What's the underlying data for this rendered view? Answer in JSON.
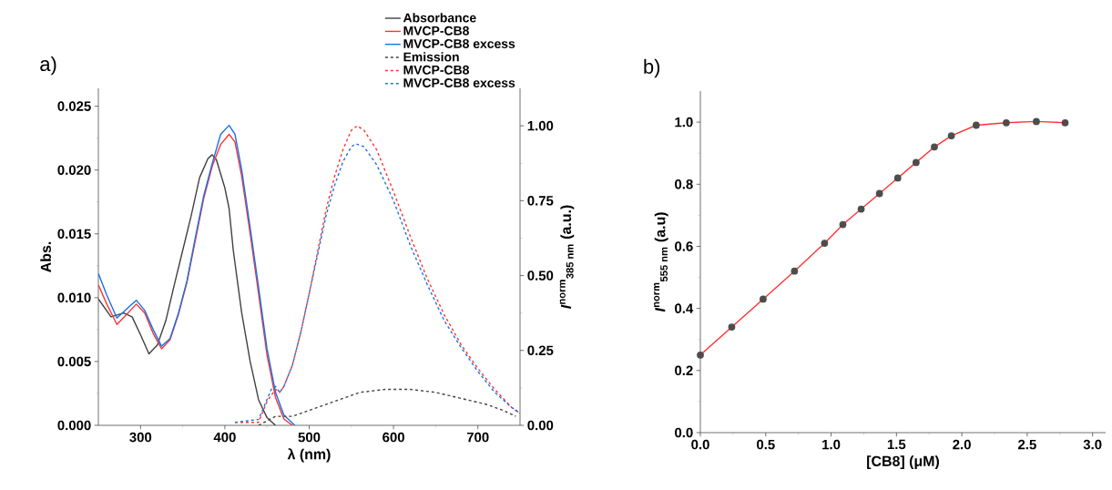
{
  "chart_data": [
    {
      "type": "line",
      "xlabel": "λ (nm)",
      "ylabel": "Abs.",
      "y2label": "*I*$^{norm}$$_{385 nm}$ (a.u.)",
      "annotations": [
        "a)"
      ],
      "xlim": [
        250,
        750
      ],
      "xticks": [
        300,
        400,
        500,
        600,
        700
      ],
      "ylim": [
        0,
        0.0264
      ],
      "yticks": [
        {
          "value": 0,
          "label": "0.000"
        },
        {
          "value": 0.005,
          "label": "0.005"
        },
        {
          "value": 0.01,
          "label": "0.010"
        },
        {
          "value": 0.015,
          "label": "0.015"
        },
        {
          "value": 0.02,
          "label": "0.020"
        },
        {
          "value": 0.025,
          "label": "0.025"
        }
      ],
      "y2lim": [
        0,
        1.125
      ],
      "y2ticks": [
        {
          "value": 0,
          "label": "0.00"
        },
        {
          "value": 0.25,
          "label": "0.25"
        },
        {
          "value": 0.5,
          "label": "0.50"
        },
        {
          "value": 0.75,
          "label": "0.75"
        },
        {
          "value": 1,
          "label": "1.00"
        }
      ],
      "legend": "top right",
      "series": [
        {
          "name": "Absorbance",
          "color": "#404040",
          "line_style": "solid",
          "x": [
            250,
            265,
            280,
            290,
            300,
            310,
            320,
            330,
            340,
            350,
            360,
            370,
            380,
            385,
            390,
            400,
            405,
            410,
            420,
            430,
            440,
            450,
            460
          ],
          "values": [
            0.0099,
            0.0085,
            0.0088,
            0.0085,
            0.0071,
            0.0056,
            0.0063,
            0.0082,
            0.011,
            0.0137,
            0.0164,
            0.0194,
            0.0209,
            0.0212,
            0.0208,
            0.0186,
            0.017,
            0.0137,
            0.0088,
            0.005,
            0.002,
            0.0006,
            0
          ]
        },
        {
          "name": "MVCP-CB8",
          "color": "#ff3333",
          "line_style": "solid",
          "x": [
            250,
            260,
            272,
            285,
            295,
            305,
            315,
            325,
            335,
            345,
            355,
            365,
            375,
            385,
            395,
            405,
            412,
            420,
            430,
            440,
            450,
            460,
            470,
            480
          ],
          "values": [
            0.011,
            0.0095,
            0.0079,
            0.0088,
            0.0095,
            0.0088,
            0.0072,
            0.006,
            0.0067,
            0.0087,
            0.0112,
            0.0145,
            0.0178,
            0.0203,
            0.022,
            0.0228,
            0.0222,
            0.0195,
            0.015,
            0.0103,
            0.0055,
            0.0022,
            0.0005,
            0
          ]
        },
        {
          "name": "MVCP-CB8 excess",
          "color": "#1a6fe6",
          "line_style": "solid",
          "x": [
            250,
            260,
            272,
            285,
            295,
            305,
            315,
            325,
            335,
            345,
            355,
            365,
            375,
            385,
            395,
            405,
            412,
            420,
            430,
            440,
            450,
            460,
            470,
            483
          ],
          "values": [
            0.0119,
            0.0102,
            0.0084,
            0.0092,
            0.0098,
            0.009,
            0.0075,
            0.0062,
            0.0068,
            0.0088,
            0.0113,
            0.0147,
            0.018,
            0.0205,
            0.0228,
            0.0235,
            0.0228,
            0.02,
            0.0155,
            0.0108,
            0.006,
            0.0026,
            0.0008,
            0
          ]
        },
        {
          "name": "Emission",
          "color": "#404040",
          "line_style": "dashed",
          "axis": "y2",
          "x": [
            440,
            460,
            480,
            500,
            530,
            560,
            590,
            620,
            650,
            680,
            710,
            730,
            745
          ],
          "values": [
            0.0,
            0.03,
            0.03,
            0.05,
            0.08,
            0.11,
            0.12,
            0.12,
            0.11,
            0.09,
            0.07,
            0.05,
            0.03
          ]
        },
        {
          "name": "MVCP-CB8",
          "color": "#ff3333",
          "line_style": "dashed",
          "axis": "y2",
          "x": [
            412,
            440,
            450,
            460,
            465,
            470,
            480,
            490,
            500,
            510,
            520,
            530,
            540,
            550,
            557,
            565,
            580,
            600,
            620,
            640,
            660,
            680,
            700,
            720,
            740,
            750
          ],
          "values": [
            0.01,
            0.01,
            0.08,
            0.12,
            0.11,
            0.13,
            0.2,
            0.31,
            0.44,
            0.58,
            0.72,
            0.83,
            0.92,
            0.985,
            1.0,
            0.985,
            0.92,
            0.78,
            0.63,
            0.49,
            0.37,
            0.27,
            0.19,
            0.12,
            0.06,
            0.04
          ]
        },
        {
          "name": "MVCP-CB8 excess",
          "color": "#1a6fe6",
          "line_style": "dashed",
          "axis": "y2",
          "x": [
            412,
            440,
            455,
            460,
            465,
            470,
            480,
            490,
            500,
            510,
            520,
            530,
            540,
            550,
            555,
            565,
            580,
            600,
            620,
            640,
            660,
            680,
            700,
            720,
            740,
            750
          ],
          "values": [
            0.01,
            0.02,
            0.12,
            0.13,
            0.11,
            0.13,
            0.2,
            0.31,
            0.44,
            0.57,
            0.7,
            0.8,
            0.88,
            0.93,
            0.94,
            0.93,
            0.87,
            0.75,
            0.6,
            0.47,
            0.35,
            0.26,
            0.18,
            0.11,
            0.06,
            0.04
          ]
        }
      ]
    },
    {
      "type": "scatter",
      "xlabel": "[CB8] (μM)",
      "ylabel": "*I*$^{norm}$$_{555 nm}$ (a.u)",
      "annotations": [
        "b)"
      ],
      "xlim": [
        0,
        3.1
      ],
      "xticks": [
        {
          "value": 0,
          "label": "0.0"
        },
        {
          "value": 0.5,
          "label": "0.5"
        },
        {
          "value": 1,
          "label": "1.0"
        },
        {
          "value": 1.5,
          "label": "1.5"
        },
        {
          "value": 2,
          "label": "2.0"
        },
        {
          "value": 2.5,
          "label": "2.5"
        },
        {
          "value": 3,
          "label": "3.0"
        }
      ],
      "ylim": [
        0,
        1.1
      ],
      "yticks": [
        {
          "value": 0,
          "label": "0.0"
        },
        {
          "value": 0.2,
          "label": "0.2"
        },
        {
          "value": 0.4,
          "label": "0.4"
        },
        {
          "value": 0.6,
          "label": "0.6"
        },
        {
          "value": 0.8,
          "label": "0.8"
        },
        {
          "value": 1,
          "label": "1.0"
        }
      ],
      "x": [
        0,
        0.24,
        0.48,
        0.72,
        0.95,
        1.09,
        1.23,
        1.37,
        1.51,
        1.65,
        1.79,
        1.92,
        2.11,
        2.34,
        2.57,
        2.79
      ],
      "series": [
        {
          "type": "line",
          "color": "#ff3333",
          "marker": "none",
          "values": [
            0.25,
            0.34,
            0.43,
            0.52,
            0.61,
            0.67,
            0.72,
            0.77,
            0.82,
            0.87,
            0.92,
            0.956,
            0.99,
            0.998,
            1.002,
            0.998
          ]
        },
        {
          "type": "scatter",
          "color": "#4d4d4d",
          "marker": "circle",
          "values": [
            0.25,
            0.34,
            0.43,
            0.52,
            0.61,
            0.67,
            0.72,
            0.77,
            0.82,
            0.87,
            0.92,
            0.956,
            0.99,
            0.998,
            1.002,
            0.998
          ]
        }
      ]
    }
  ]
}
